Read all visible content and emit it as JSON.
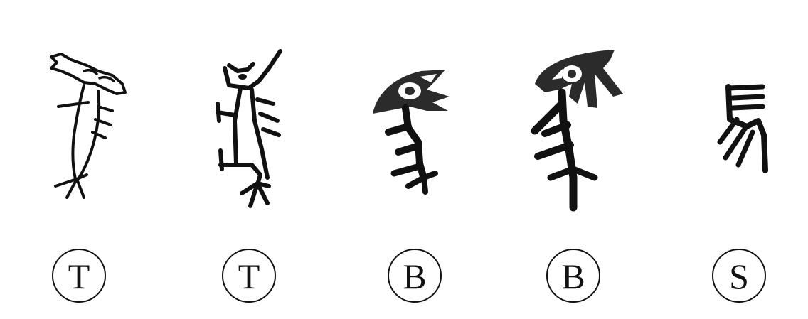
{
  "characters": [
    {
      "glyph_icon": "oracle-glyph-1-icon",
      "label": "T"
    },
    {
      "glyph_icon": "oracle-glyph-2-icon",
      "label": "T"
    },
    {
      "glyph_icon": "bronze-glyph-1-icon",
      "label": "B"
    },
    {
      "glyph_icon": "bronze-glyph-2-icon",
      "label": "B"
    },
    {
      "glyph_icon": "seal-glyph-icon",
      "label": "S"
    }
  ],
  "colors": {
    "ink": "#111111",
    "fill": "#2b2b2b",
    "background": "#ffffff"
  }
}
